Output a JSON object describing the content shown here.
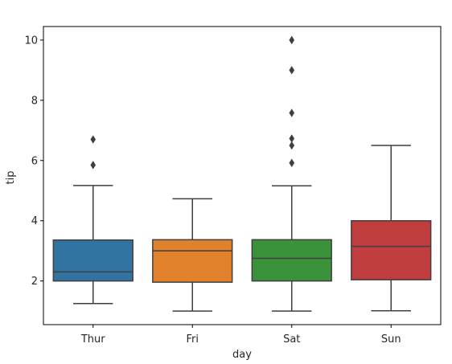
{
  "chart_data": {
    "type": "box",
    "xlabel": "day",
    "ylabel": "tip",
    "ylim": [
      0.55,
      10.45
    ],
    "yticks": [
      2,
      4,
      6,
      8,
      10
    ],
    "categories": [
      "Thur",
      "Fri",
      "Sat",
      "Sun"
    ],
    "grid": false,
    "boxes": [
      {
        "category": "Thur",
        "color": "#3274a1",
        "whisker_low": 1.25,
        "q1": 2.0,
        "median": 2.3,
        "q3": 3.36,
        "whisker_high": 5.17,
        "outliers": [
          5.85,
          6.7
        ]
      },
      {
        "category": "Fri",
        "color": "#e1812c",
        "whisker_low": 1.0,
        "q1": 1.96,
        "median": 3.0,
        "q3": 3.37,
        "whisker_high": 4.73,
        "outliers": []
      },
      {
        "category": "Sat",
        "color": "#3a923a",
        "whisker_low": 1.0,
        "q1": 2.0,
        "median": 2.75,
        "q3": 3.37,
        "whisker_high": 5.16,
        "outliers": [
          5.92,
          6.5,
          6.73,
          7.58,
          9.0,
          10.0
        ]
      },
      {
        "category": "Sun",
        "color": "#c03d3e",
        "whisker_low": 1.01,
        "q1": 2.04,
        "median": 3.15,
        "q3": 4.0,
        "whisker_high": 6.5,
        "outliers": []
      }
    ]
  }
}
